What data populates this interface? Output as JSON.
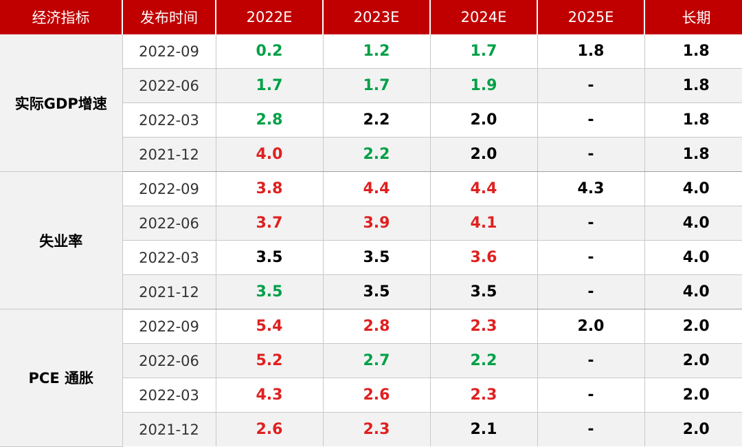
{
  "colors": {
    "header_bg": "#c00000",
    "green": "#00a046",
    "red": "#e02020",
    "black": "#000000"
  },
  "header": [
    "经济指标",
    "发布时间",
    "2022E",
    "2023E",
    "2024E",
    "2025E",
    "长期"
  ],
  "groups": [
    {
      "indicator": "实际GDP增速",
      "rows": [
        {
          "date": "2022-09",
          "cells": [
            {
              "v": "0.2",
              "c": "green"
            },
            {
              "v": "1.2",
              "c": "green"
            },
            {
              "v": "1.7",
              "c": "green"
            },
            {
              "v": "1.8",
              "c": "black"
            },
            {
              "v": "1.8",
              "c": "black"
            }
          ]
        },
        {
          "date": "2022-06",
          "cells": [
            {
              "v": "1.7",
              "c": "green"
            },
            {
              "v": "1.7",
              "c": "green"
            },
            {
              "v": "1.9",
              "c": "green"
            },
            {
              "v": "-",
              "c": "black"
            },
            {
              "v": "1.8",
              "c": "black"
            }
          ]
        },
        {
          "date": "2022-03",
          "cells": [
            {
              "v": "2.8",
              "c": "green"
            },
            {
              "v": "2.2",
              "c": "black"
            },
            {
              "v": "2.0",
              "c": "black"
            },
            {
              "v": "-",
              "c": "black"
            },
            {
              "v": "1.8",
              "c": "black"
            }
          ]
        },
        {
          "date": "2021-12",
          "cells": [
            {
              "v": "4.0",
              "c": "red"
            },
            {
              "v": "2.2",
              "c": "green"
            },
            {
              "v": "2.0",
              "c": "black"
            },
            {
              "v": "-",
              "c": "black"
            },
            {
              "v": "1.8",
              "c": "black"
            }
          ]
        }
      ]
    },
    {
      "indicator": "失业率",
      "rows": [
        {
          "date": "2022-09",
          "cells": [
            {
              "v": "3.8",
              "c": "red"
            },
            {
              "v": "4.4",
              "c": "red"
            },
            {
              "v": "4.4",
              "c": "red"
            },
            {
              "v": "4.3",
              "c": "black"
            },
            {
              "v": "4.0",
              "c": "black"
            }
          ]
        },
        {
          "date": "2022-06",
          "cells": [
            {
              "v": "3.7",
              "c": "red"
            },
            {
              "v": "3.9",
              "c": "red"
            },
            {
              "v": "4.1",
              "c": "red"
            },
            {
              "v": "-",
              "c": "black"
            },
            {
              "v": "4.0",
              "c": "black"
            }
          ]
        },
        {
          "date": "2022-03",
          "cells": [
            {
              "v": "3.5",
              "c": "black"
            },
            {
              "v": "3.5",
              "c": "black"
            },
            {
              "v": "3.6",
              "c": "red"
            },
            {
              "v": "-",
              "c": "black"
            },
            {
              "v": "4.0",
              "c": "black"
            }
          ]
        },
        {
          "date": "2021-12",
          "cells": [
            {
              "v": "3.5",
              "c": "green"
            },
            {
              "v": "3.5",
              "c": "black"
            },
            {
              "v": "3.5",
              "c": "black"
            },
            {
              "v": "-",
              "c": "black"
            },
            {
              "v": "4.0",
              "c": "black"
            }
          ]
        }
      ]
    },
    {
      "indicator": "PCE 通胀",
      "rows": [
        {
          "date": "2022-09",
          "cells": [
            {
              "v": "5.4",
              "c": "red"
            },
            {
              "v": "2.8",
              "c": "red"
            },
            {
              "v": "2.3",
              "c": "red"
            },
            {
              "v": "2.0",
              "c": "black"
            },
            {
              "v": "2.0",
              "c": "black"
            }
          ]
        },
        {
          "date": "2022-06",
          "cells": [
            {
              "v": "5.2",
              "c": "red"
            },
            {
              "v": "2.7",
              "c": "green"
            },
            {
              "v": "2.2",
              "c": "green"
            },
            {
              "v": "-",
              "c": "black"
            },
            {
              "v": "2.0",
              "c": "black"
            }
          ]
        },
        {
          "date": "2022-03",
          "cells": [
            {
              "v": "4.3",
              "c": "red"
            },
            {
              "v": "2.6",
              "c": "red"
            },
            {
              "v": "2.3",
              "c": "red"
            },
            {
              "v": "-",
              "c": "black"
            },
            {
              "v": "2.0",
              "c": "black"
            }
          ]
        },
        {
          "date": "2021-12",
          "cells": [
            {
              "v": "2.6",
              "c": "red"
            },
            {
              "v": "2.3",
              "c": "red"
            },
            {
              "v": "2.1",
              "c": "black"
            },
            {
              "v": "-",
              "c": "black"
            },
            {
              "v": "2.0",
              "c": "black"
            }
          ]
        }
      ]
    }
  ]
}
